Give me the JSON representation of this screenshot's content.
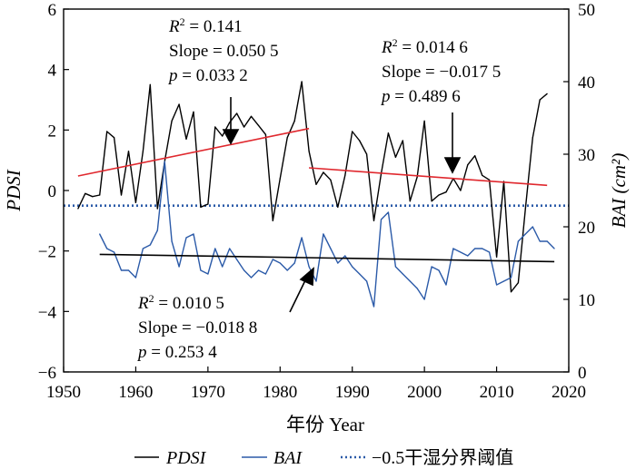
{
  "chart_data": {
    "type": "line",
    "xlabel": "年份 Year",
    "ylabel_left": "PDSI",
    "ylabel_right": "BAI (cm²)",
    "xlim": [
      1950,
      2020
    ],
    "ylim_left": [
      -6,
      6
    ],
    "ylim_right": [
      0,
      50
    ],
    "x_ticks": [
      1950,
      1960,
      1970,
      1980,
      1990,
      2000,
      2010,
      2020
    ],
    "y_ticks_left": [
      -6,
      -4,
      -2,
      0,
      2,
      4,
      6
    ],
    "y_ticks_right": [
      0,
      10,
      20,
      30,
      40,
      50
    ],
    "tick_labels": {
      "x": [
        "1950",
        "1960",
        "1970",
        "1980",
        "1990",
        "2000",
        "2010",
        "2020"
      ],
      "y_left": [
        "−6",
        "−4",
        "−2",
        "0",
        "2",
        "4",
        "6"
      ],
      "y_right": [
        "0",
        "10",
        "20",
        "30",
        "40",
        "50"
      ]
    },
    "grid": false,
    "legend_position": "bottom",
    "series": [
      {
        "name": "PDSI",
        "axis": "left",
        "color": "#000000",
        "x": [
          1952,
          1953,
          1954,
          1955,
          1956,
          1957,
          1958,
          1959,
          1960,
          1961,
          1962,
          1963,
          1964,
          1965,
          1966,
          1967,
          1968,
          1969,
          1970,
          1971,
          1972,
          1973,
          1974,
          1975,
          1976,
          1977,
          1978,
          1979,
          1980,
          1981,
          1982,
          1983,
          1984,
          1985,
          1986,
          1987,
          1988,
          1989,
          1990,
          1991,
          1992,
          1993,
          1994,
          1995,
          1996,
          1997,
          1998,
          1999,
          2000,
          2001,
          2002,
          2003,
          2004,
          2005,
          2006,
          2007,
          2008,
          2009,
          2010,
          2011,
          2012,
          2013,
          2014,
          2015,
          2016,
          2017
        ],
        "values": [
          -0.6,
          -0.1,
          -0.2,
          -0.15,
          1.95,
          1.75,
          -0.15,
          1.3,
          -0.4,
          1.3,
          3.5,
          -0.6,
          0.95,
          2.3,
          2.85,
          1.7,
          2.6,
          -0.55,
          -0.45,
          2.1,
          1.8,
          2.25,
          2.55,
          2.1,
          2.45,
          2.15,
          1.85,
          -1.0,
          0.4,
          1.75,
          2.3,
          3.6,
          1.3,
          0.2,
          0.6,
          0.35,
          -0.55,
          0.5,
          1.95,
          1.65,
          1.2,
          -1.0,
          0.55,
          1.9,
          1.1,
          1.65,
          -0.35,
          0.45,
          2.3,
          -0.35,
          -0.15,
          -0.05,
          0.4,
          0.0,
          0.85,
          1.15,
          0.5,
          0.35,
          -2.2,
          0.3,
          -3.35,
          -3.05,
          -0.6,
          1.75,
          3.0,
          3.2
        ]
      },
      {
        "name": "BAI",
        "axis": "right",
        "color": "#2b5aa8",
        "x": [
          1955,
          1956,
          1957,
          1958,
          1959,
          1960,
          1961,
          1962,
          1963,
          1964,
          1965,
          1966,
          1967,
          1968,
          1969,
          1970,
          1971,
          1972,
          1973,
          1974,
          1975,
          1976,
          1977,
          1978,
          1979,
          1980,
          1981,
          1982,
          1983,
          1984,
          1985,
          1986,
          1987,
          1988,
          1989,
          1990,
          1991,
          1992,
          1993,
          1994,
          1995,
          1996,
          1997,
          1998,
          1999,
          2000,
          2001,
          2002,
          2003,
          2004,
          2005,
          2006,
          2007,
          2008,
          2009,
          2010,
          2011,
          2012,
          2013,
          2014,
          2015,
          2016,
          2017,
          2018
        ],
        "values": [
          19,
          17,
          16.5,
          14,
          14,
          13,
          17,
          17.5,
          19.5,
          29,
          18,
          14.5,
          18.5,
          19,
          14,
          13.5,
          17,
          14.5,
          17,
          15.5,
          14,
          13,
          14,
          13.5,
          15.5,
          15,
          14,
          15,
          18.5,
          14.5,
          12.5,
          19,
          17,
          15,
          16,
          14.5,
          13.5,
          12.5,
          9,
          21,
          22,
          14.5,
          13.5,
          12.5,
          11.5,
          10,
          14.5,
          14,
          12,
          17,
          16.5,
          16,
          17,
          17,
          16.5,
          12,
          12.5,
          13,
          18,
          19,
          20,
          18,
          18,
          17
        ]
      }
    ],
    "reference_lines": [
      {
        "name": "−0.5干湿分界阈值",
        "axis": "left",
        "y": -0.5,
        "style": "dotted",
        "color": "#2b5aa8"
      }
    ],
    "trend_lines": [
      {
        "axis": "left",
        "x": [
          1952,
          1984
        ],
        "y": [
          0.48,
          2.05
        ],
        "color": "#e0282e"
      },
      {
        "axis": "left",
        "x": [
          1984,
          2017
        ],
        "y": [
          0.75,
          0.17
        ],
        "color": "#e0282e"
      },
      {
        "axis": "right",
        "x": [
          1955,
          2018
        ],
        "y": [
          16.2,
          15.2
        ],
        "color": "#000000"
      }
    ],
    "annotations": [
      {
        "r2_prefix": "R",
        "r2_suffix": " = 0.141",
        "slope": "Slope = 0.050 5",
        "p_prefix": "p",
        "p_suffix": " = 0.033 2"
      },
      {
        "r2_prefix": "R",
        "r2_suffix": " = 0.014 6",
        "slope": "Slope = −0.017 5",
        "p_prefix": "p",
        "p_suffix": " = 0.489 6"
      },
      {
        "r2_prefix": "R",
        "r2_suffix": " = 0.010 5",
        "slope": "Slope = −0.018 8",
        "p_prefix": "p",
        "p_suffix": " = 0.253 4"
      }
    ],
    "legend": [
      {
        "label": "PDSI",
        "style": "solid",
        "color": "#000000",
        "italic": true
      },
      {
        "label": "BAI",
        "style": "solid",
        "color": "#2b5aa8",
        "italic": true
      },
      {
        "label": "−0.5干湿分界阈值",
        "style": "dotted",
        "color": "#2b5aa8",
        "italic": false
      }
    ]
  }
}
